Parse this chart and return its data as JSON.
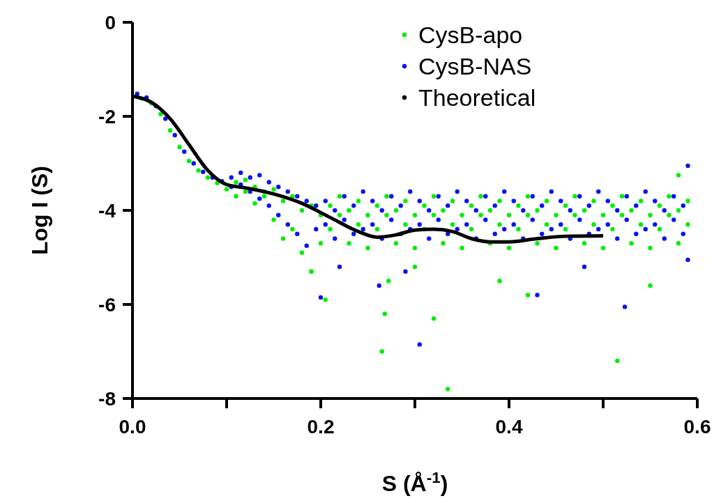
{
  "chart_data": {
    "type": "scatter",
    "xlabel": "S (Å$^{-1}$)",
    "ylabel": "Log I (S)",
    "xlim": [
      0,
      0.6
    ],
    "ylim": [
      -8,
      0
    ],
    "xticks": [
      {
        "value": 0,
        "label": "0.0"
      },
      {
        "value": 0.1,
        "label": null
      },
      {
        "value": 0.2,
        "label": "0.2"
      },
      {
        "value": 0.3,
        "label": null
      },
      {
        "value": 0.4,
        "label": "0.4"
      },
      {
        "value": 0.5,
        "label": null
      },
      {
        "value": 0.6,
        "label": "0.6"
      }
    ],
    "yticks": [
      -8,
      -6,
      -4,
      -2,
      0
    ],
    "grid": false,
    "legend": "top right",
    "marker": "circle",
    "series": [
      {
        "name": "CysB-apo",
        "color": "#00ee00",
        "x": [
          0.01,
          0.02,
          0.03,
          0.04,
          0.05,
          0.06,
          0.07,
          0.08,
          0.09,
          0.1,
          0.11,
          0.11,
          0.12,
          0.12,
          0.13,
          0.13,
          0.14,
          0.14,
          0.15,
          0.15,
          0.16,
          0.16,
          0.17,
          0.17,
          0.18,
          0.18,
          0.19,
          0.19,
          0.2,
          0.2,
          0.21,
          0.21,
          0.22,
          0.22,
          0.23,
          0.23,
          0.24,
          0.24,
          0.25,
          0.25,
          0.26,
          0.26,
          0.27,
          0.27,
          0.28,
          0.28,
          0.29,
          0.29,
          0.3,
          0.3,
          0.31,
          0.31,
          0.32,
          0.32,
          0.33,
          0.33,
          0.34,
          0.34,
          0.35,
          0.35,
          0.36,
          0.36,
          0.37,
          0.37,
          0.38,
          0.38,
          0.39,
          0.39,
          0.4,
          0.4,
          0.41,
          0.41,
          0.42,
          0.42,
          0.43,
          0.43,
          0.44,
          0.44,
          0.45,
          0.45,
          0.46,
          0.46,
          0.47,
          0.47,
          0.48,
          0.48,
          0.49,
          0.49,
          0.5,
          0.5,
          0.51,
          0.51,
          0.52,
          0.52,
          0.53,
          0.53,
          0.54,
          0.54,
          0.55,
          0.55,
          0.56,
          0.56,
          0.57,
          0.57,
          0.58,
          0.58,
          0.59,
          0.59,
          0.205,
          0.265,
          0.335,
          0.515,
          0.32,
          0.268,
          0.272,
          0.3,
          0.42,
          0.39,
          0.55,
          0.58,
          0.19
        ],
        "values": [
          -1.62,
          -1.72,
          -1.95,
          -2.3,
          -2.65,
          -2.95,
          -3.15,
          -3.3,
          -3.42,
          -3.55,
          -3.4,
          -3.7,
          -3.35,
          -3.6,
          -3.5,
          -3.85,
          -3.6,
          -3.7,
          -3.55,
          -4.2,
          -3.8,
          -4.6,
          -3.7,
          -4.4,
          -4.0,
          -4.9,
          -3.9,
          -5.3,
          -4.1,
          -4.7,
          -3.9,
          -4.4,
          -3.7,
          -4.1,
          -4.0,
          -4.7,
          -3.8,
          -4.3,
          -4.1,
          -4.8,
          -3.9,
          -4.4,
          -3.7,
          -4.1,
          -4.0,
          -4.7,
          -3.8,
          -4.3,
          -4.1,
          -4.8,
          -3.9,
          -4.4,
          -3.7,
          -4.1,
          -4.0,
          -4.7,
          -3.8,
          -4.3,
          -4.1,
          -4.8,
          -3.9,
          -4.4,
          -3.7,
          -4.1,
          -4.0,
          -4.7,
          -3.8,
          -4.3,
          -4.1,
          -4.8,
          -3.9,
          -4.4,
          -3.7,
          -4.1,
          -4.0,
          -4.7,
          -3.8,
          -4.3,
          -4.1,
          -4.8,
          -3.9,
          -4.4,
          -3.7,
          -4.1,
          -4.0,
          -4.7,
          -3.8,
          -4.3,
          -4.1,
          -4.8,
          -3.9,
          -4.4,
          -3.7,
          -4.1,
          -4.0,
          -4.7,
          -3.8,
          -4.3,
          -4.1,
          -4.8,
          -3.9,
          -4.4,
          -3.7,
          -4.1,
          -4.0,
          -4.7,
          -3.8,
          -4.3,
          -5.9,
          -7.0,
          -7.8,
          -7.2,
          -6.3,
          -6.2,
          -5.5,
          -5.2,
          -5.8,
          -5.5,
          -5.6,
          -3.25,
          -5.3
        ]
      },
      {
        "name": "CysB-NAS",
        "color": "#0a14ee",
        "x": [
          0.005,
          0.015,
          0.025,
          0.035,
          0.045,
          0.055,
          0.065,
          0.075,
          0.085,
          0.095,
          0.105,
          0.105,
          0.115,
          0.115,
          0.125,
          0.125,
          0.135,
          0.135,
          0.145,
          0.145,
          0.155,
          0.155,
          0.165,
          0.165,
          0.175,
          0.175,
          0.185,
          0.185,
          0.195,
          0.195,
          0.205,
          0.205,
          0.215,
          0.215,
          0.225,
          0.225,
          0.235,
          0.235,
          0.245,
          0.245,
          0.255,
          0.255,
          0.265,
          0.265,
          0.275,
          0.275,
          0.285,
          0.285,
          0.295,
          0.295,
          0.305,
          0.305,
          0.315,
          0.315,
          0.325,
          0.325,
          0.335,
          0.335,
          0.345,
          0.345,
          0.355,
          0.355,
          0.365,
          0.365,
          0.375,
          0.375,
          0.385,
          0.385,
          0.395,
          0.395,
          0.405,
          0.405,
          0.415,
          0.415,
          0.425,
          0.425,
          0.435,
          0.435,
          0.445,
          0.445,
          0.455,
          0.455,
          0.465,
          0.465,
          0.475,
          0.475,
          0.485,
          0.485,
          0.495,
          0.495,
          0.505,
          0.505,
          0.515,
          0.515,
          0.525,
          0.525,
          0.535,
          0.535,
          0.545,
          0.545,
          0.555,
          0.555,
          0.565,
          0.565,
          0.575,
          0.575,
          0.585,
          0.585,
          0.2,
          0.305,
          0.262,
          0.523,
          0.59,
          0.59,
          0.22,
          0.29,
          0.43,
          0.48
        ],
        "values": [
          -1.52,
          -1.6,
          -1.78,
          -2.05,
          -2.4,
          -2.75,
          -3.0,
          -3.18,
          -3.3,
          -3.38,
          -3.3,
          -3.5,
          -3.2,
          -3.45,
          -3.3,
          -3.6,
          -3.25,
          -3.75,
          -3.4,
          -3.9,
          -3.5,
          -4.1,
          -3.6,
          -4.3,
          -3.7,
          -4.5,
          -3.8,
          -4.75,
          -3.9,
          -4.4,
          -3.8,
          -4.3,
          -4.0,
          -4.6,
          -3.7,
          -4.2,
          -3.9,
          -4.5,
          -3.6,
          -4.4,
          -3.8,
          -4.3,
          -4.0,
          -4.6,
          -3.7,
          -4.2,
          -3.9,
          -4.5,
          -3.6,
          -4.4,
          -3.8,
          -4.3,
          -4.0,
          -4.6,
          -3.7,
          -4.2,
          -3.9,
          -4.5,
          -3.6,
          -4.4,
          -3.8,
          -4.3,
          -4.0,
          -4.6,
          -3.7,
          -4.2,
          -3.9,
          -4.5,
          -3.6,
          -4.4,
          -3.8,
          -4.3,
          -4.0,
          -4.6,
          -3.7,
          -4.2,
          -3.9,
          -4.5,
          -3.6,
          -4.4,
          -3.8,
          -4.3,
          -4.0,
          -4.6,
          -3.7,
          -4.2,
          -3.9,
          -4.5,
          -3.6,
          -4.4,
          -3.8,
          -4.3,
          -4.0,
          -4.6,
          -3.7,
          -4.2,
          -3.9,
          -4.5,
          -3.6,
          -4.4,
          -3.8,
          -4.3,
          -4.0,
          -4.6,
          -3.7,
          -4.2,
          -3.9,
          -4.5,
          -5.85,
          -6.85,
          -5.6,
          -6.05,
          -5.05,
          -3.05,
          -5.2,
          -5.3,
          -5.8,
          -5.2
        ]
      },
      {
        "name": "Theoretical",
        "color": "#000000",
        "type": "line",
        "marker": "none",
        "x": [
          0,
          0.02,
          0.04,
          0.06,
          0.08,
          0.1,
          0.12,
          0.15,
          0.18,
          0.21,
          0.24,
          0.26,
          0.28,
          0.3,
          0.32,
          0.34,
          0.36,
          0.38,
          0.4,
          0.43,
          0.46,
          0.5
        ],
        "values": [
          -1.57,
          -1.7,
          -2.05,
          -2.6,
          -3.15,
          -3.45,
          -3.52,
          -3.65,
          -3.85,
          -4.15,
          -4.45,
          -4.57,
          -4.52,
          -4.42,
          -4.4,
          -4.45,
          -4.6,
          -4.67,
          -4.67,
          -4.6,
          -4.55,
          -4.54
        ]
      }
    ]
  }
}
